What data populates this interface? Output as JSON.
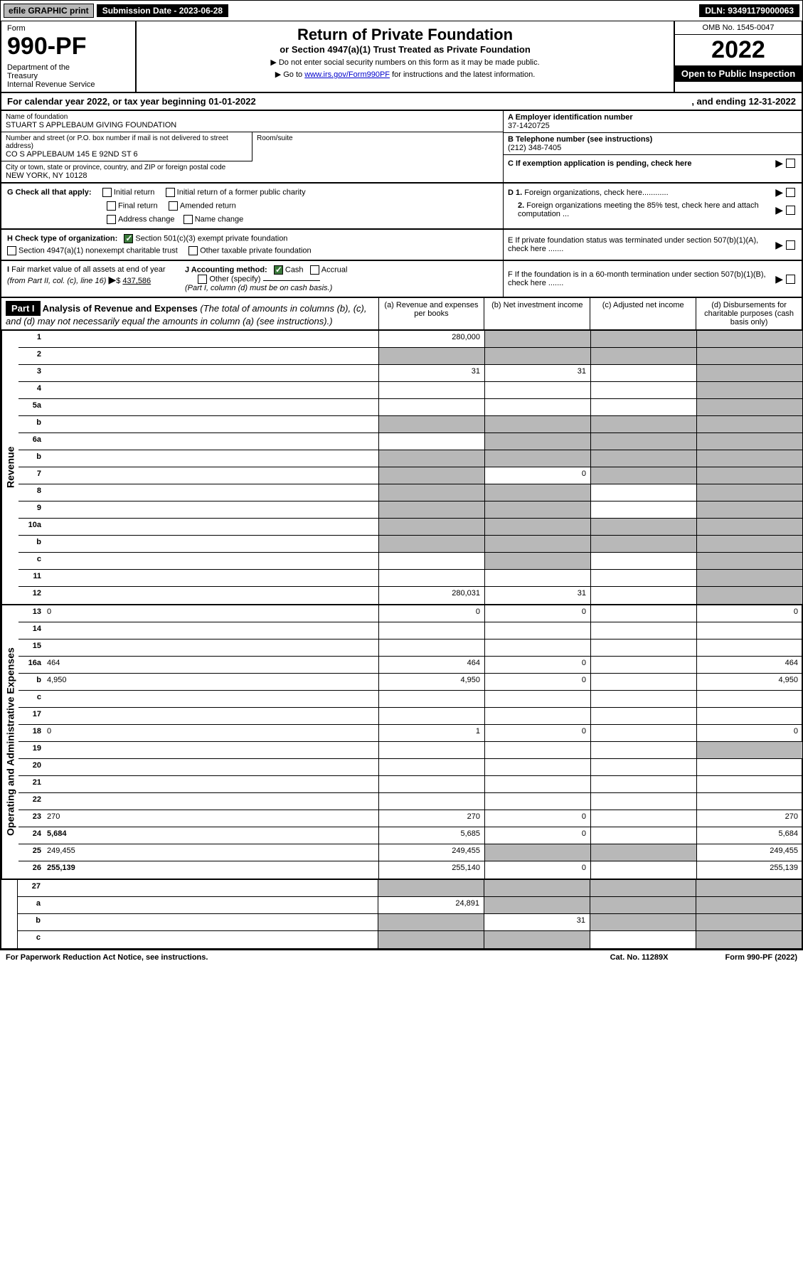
{
  "topbar": {
    "efile": "efile GRAPHIC print",
    "submission": "Submission Date - 2023-06-28",
    "dln": "DLN: 93491179000063"
  },
  "header": {
    "form_label": "Form",
    "form_num": "990-PF",
    "dept": "Department of the Treasury\nInternal Revenue Service",
    "title": "Return of Private Foundation",
    "subtitle": "or Section 4947(a)(1) Trust Treated as Private Foundation",
    "instr1": "▶ Do not enter social security numbers on this form as it may be made public.",
    "instr2_pre": "▶ Go to ",
    "instr2_link": "www.irs.gov/Form990PF",
    "instr2_post": " for instructions and the latest information.",
    "omb": "OMB No. 1545-0047",
    "year": "2022",
    "open": "Open to Public Inspection"
  },
  "calyear": {
    "text": "For calendar year 2022, or tax year beginning 01-01-2022",
    "ending": ", and ending 12-31-2022"
  },
  "info": {
    "name_label": "Name of foundation",
    "name": "STUART S APPLEBAUM GIVING FOUNDATION",
    "addr_label": "Number and street (or P.O. box number if mail is not delivered to street address)",
    "addr": "CO S APPLEBAUM 145 E 92ND ST 6",
    "room_label": "Room/suite",
    "city_label": "City or town, state or province, country, and ZIP or foreign postal code",
    "city": "NEW YORK, NY  10128",
    "ein_label": "A Employer identification number",
    "ein": "37-1420725",
    "tel_label": "B Telephone number (see instructions)",
    "tel": "(212) 348-7405",
    "c_label": "C If exemption application is pending, check here"
  },
  "checks": {
    "g_label": "G Check all that apply:",
    "g1": "Initial return",
    "g2": "Initial return of a former public charity",
    "g3": "Final return",
    "g4": "Amended return",
    "g5": "Address change",
    "g6": "Name change",
    "h_label": "H Check type of organization:",
    "h1": "Section 501(c)(3) exempt private foundation",
    "h2": "Section 4947(a)(1) nonexempt charitable trust",
    "h3": "Other taxable private foundation",
    "i_label": "I Fair market value of all assets at end of year (from Part II, col. (c), line 16)",
    "i_amt": "437,586",
    "j_label": "J Accounting method:",
    "j1": "Cash",
    "j2": "Accrual",
    "j3": "Other (specify)",
    "j_note": "(Part I, column (d) must be on cash basis.)",
    "d1": "D 1. Foreign organizations, check here............",
    "d2": "2. Foreign organizations meeting the 85% test, check here and attach computation ...",
    "e": "E  If private foundation status was terminated under section 507(b)(1)(A), check here .......",
    "f": "F  If the foundation is in a 60-month termination under section 507(b)(1)(B), check here ......."
  },
  "part1": {
    "label": "Part I",
    "title": "Analysis of Revenue and Expenses",
    "note": "(The total of amounts in columns (b), (c), and (d) may not necessarily equal the amounts in column (a) (see instructions).)",
    "cola": "(a)   Revenue and expenses per books",
    "colb": "(b)   Net investment income",
    "colc": "(c)   Adjusted net income",
    "cold": "(d)  Disbursements for charitable purposes (cash basis only)"
  },
  "sidelabels": {
    "rev": "Revenue",
    "exp": "Operating and Administrative Expenses"
  },
  "rows": {
    "r1": {
      "n": "1",
      "d": "",
      "a": "280,000",
      "b": "",
      "c": "",
      "greyB": true,
      "greyC": true,
      "greyD": true
    },
    "r2": {
      "n": "2",
      "d": "",
      "a": "",
      "b": "",
      "c": "",
      "greyA": true,
      "greyB": true,
      "greyC": true,
      "greyD": true
    },
    "r3": {
      "n": "3",
      "d": "",
      "a": "31",
      "b": "31",
      "c": "",
      "greyD": true
    },
    "r4": {
      "n": "4",
      "d": "",
      "a": "",
      "b": "",
      "c": "",
      "greyD": true
    },
    "r5a": {
      "n": "5a",
      "d": "",
      "a": "",
      "b": "",
      "c": "",
      "greyD": true
    },
    "r5b": {
      "n": "b",
      "d": "",
      "a": "",
      "b": "",
      "c": "",
      "greyA": true,
      "greyB": true,
      "greyC": true,
      "greyD": true
    },
    "r6a": {
      "n": "6a",
      "d": "",
      "a": "",
      "b": "",
      "c": "",
      "greyB": true,
      "greyC": true,
      "greyD": true
    },
    "r6b": {
      "n": "b",
      "d": "",
      "a": "",
      "b": "",
      "c": "",
      "greyA": true,
      "greyB": true,
      "greyC": true,
      "greyD": true
    },
    "r7": {
      "n": "7",
      "d": "",
      "a": "",
      "b": "0",
      "c": "",
      "greyA": true,
      "greyC": true,
      "greyD": true
    },
    "r8": {
      "n": "8",
      "d": "",
      "a": "",
      "b": "",
      "c": "",
      "greyA": true,
      "greyB": true,
      "greyD": true
    },
    "r9": {
      "n": "9",
      "d": "",
      "a": "",
      "b": "",
      "c": "",
      "greyA": true,
      "greyB": true,
      "greyD": true
    },
    "r10a": {
      "n": "10a",
      "d": "",
      "a": "",
      "b": "",
      "c": "",
      "greyA": true,
      "greyB": true,
      "greyC": true,
      "greyD": true
    },
    "r10b": {
      "n": "b",
      "d": "",
      "a": "",
      "b": "",
      "c": "",
      "greyA": true,
      "greyB": true,
      "greyC": true,
      "greyD": true
    },
    "r10c": {
      "n": "c",
      "d": "",
      "a": "",
      "b": "",
      "c": "",
      "greyB": true,
      "greyD": true
    },
    "r11": {
      "n": "11",
      "d": "",
      "a": "",
      "b": "",
      "c": "",
      "greyD": true
    },
    "r12": {
      "n": "12",
      "d": "",
      "a": "280,031",
      "b": "31",
      "c": "",
      "bold": true,
      "greyD": true
    },
    "r13": {
      "n": "13",
      "d": "0",
      "a": "0",
      "b": "0",
      "c": ""
    },
    "r14": {
      "n": "14",
      "d": "",
      "a": "",
      "b": "",
      "c": ""
    },
    "r15": {
      "n": "15",
      "d": "",
      "a": "",
      "b": "",
      "c": ""
    },
    "r16a": {
      "n": "16a",
      "d": "464",
      "a": "464",
      "b": "0",
      "c": ""
    },
    "r16b": {
      "n": "b",
      "d": "4,950",
      "a": "4,950",
      "b": "0",
      "c": ""
    },
    "r16c": {
      "n": "c",
      "d": "",
      "a": "",
      "b": "",
      "c": ""
    },
    "r17": {
      "n": "17",
      "d": "",
      "a": "",
      "b": "",
      "c": ""
    },
    "r18": {
      "n": "18",
      "d": "0",
      "a": "1",
      "b": "0",
      "c": ""
    },
    "r19": {
      "n": "19",
      "d": "",
      "a": "",
      "b": "",
      "c": "",
      "greyD": true
    },
    "r20": {
      "n": "20",
      "d": "",
      "a": "",
      "b": "",
      "c": ""
    },
    "r21": {
      "n": "21",
      "d": "",
      "a": "",
      "b": "",
      "c": ""
    },
    "r22": {
      "n": "22",
      "d": "",
      "a": "",
      "b": "",
      "c": ""
    },
    "r23": {
      "n": "23",
      "d": "270",
      "a": "270",
      "b": "0",
      "c": ""
    },
    "r24": {
      "n": "24",
      "d": "5,684",
      "a": "5,685",
      "b": "0",
      "c": "",
      "bold": true
    },
    "r25": {
      "n": "25",
      "d": "249,455",
      "a": "249,455",
      "b": "",
      "c": "",
      "greyB": true,
      "greyC": true
    },
    "r26": {
      "n": "26",
      "d": "255,139",
      "a": "255,140",
      "b": "0",
      "c": "",
      "bold": true
    },
    "r27": {
      "n": "27",
      "d": "",
      "a": "",
      "b": "",
      "c": "",
      "greyA": true,
      "greyB": true,
      "greyC": true,
      "greyD": true
    },
    "r27a": {
      "n": "a",
      "d": "",
      "a": "24,891",
      "b": "",
      "c": "",
      "bold": true,
      "greyB": true,
      "greyC": true,
      "greyD": true
    },
    "r27b": {
      "n": "b",
      "d": "",
      "a": "",
      "b": "31",
      "c": "",
      "bold": true,
      "greyA": true,
      "greyC": true,
      "greyD": true
    },
    "r27c": {
      "n": "c",
      "d": "",
      "a": "",
      "b": "",
      "c": "",
      "bold": true,
      "greyA": true,
      "greyB": true,
      "greyD": true
    }
  },
  "footer": {
    "pra": "For Paperwork Reduction Act Notice, see instructions.",
    "cat": "Cat. No. 11289X",
    "form": "Form 990-PF (2022)"
  },
  "colors": {
    "black": "#000000",
    "grey": "#b8b8b8",
    "link": "#0000cc",
    "green": "#3b7a3b"
  }
}
